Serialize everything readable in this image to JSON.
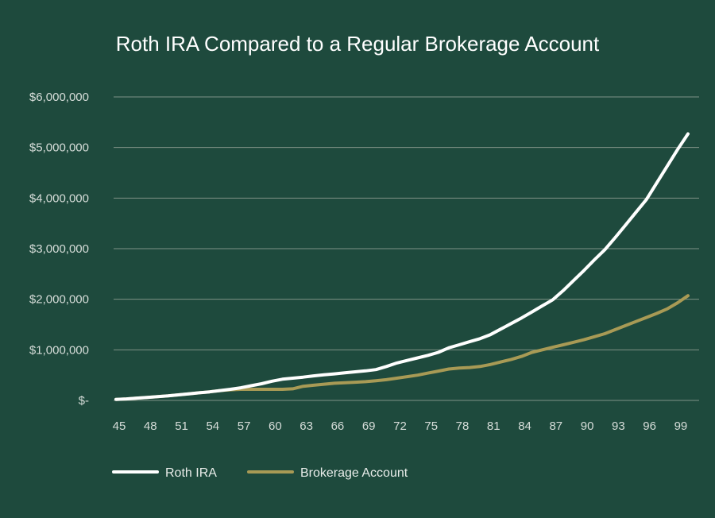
{
  "chart_data": {
    "type": "line",
    "title": "Roth IRA Compared to a Regular Brokerage Account",
    "xlabel": "",
    "ylabel": "",
    "x": [
      45,
      46,
      47,
      48,
      49,
      50,
      51,
      52,
      53,
      54,
      55,
      56,
      57,
      58,
      59,
      60,
      61,
      62,
      63,
      64,
      65,
      66,
      67,
      68,
      69,
      70,
      71,
      72,
      73,
      74,
      75,
      76,
      77,
      78,
      79,
      80,
      81,
      82,
      83,
      84,
      85,
      86,
      87,
      88,
      89,
      90,
      91,
      92,
      93,
      94,
      95,
      96,
      97,
      98,
      99,
      100
    ],
    "x_tick_labels": [
      "45",
      "48",
      "51",
      "54",
      "57",
      "60",
      "63",
      "66",
      "69",
      "72",
      "75",
      "78",
      "81",
      "84",
      "87",
      "90",
      "93",
      "96",
      "99"
    ],
    "y_tick_labels": [
      "$-",
      "$1,000,000",
      "$2,000,000",
      "$3,000,000",
      "$4,000,000",
      "$5,000,000",
      "$6,000,000"
    ],
    "ylim": [
      0,
      6000000
    ],
    "grid": "horizontal",
    "legend_position": "bottom-left",
    "series": [
      {
        "name": "Roth IRA",
        "color": "#ffffff",
        "values": [
          20000,
          30000,
          45000,
          60000,
          75000,
          90000,
          110000,
          130000,
          150000,
          170000,
          195000,
          220000,
          250000,
          290000,
          330000,
          380000,
          420000,
          440000,
          460000,
          485000,
          505000,
          525000,
          545000,
          565000,
          585000,
          610000,
          670000,
          740000,
          790000,
          840000,
          890000,
          950000,
          1040000,
          1100000,
          1160000,
          1220000,
          1300000,
          1410000,
          1520000,
          1630000,
          1750000,
          1870000,
          1990000,
          2170000,
          2370000,
          2570000,
          2780000,
          2980000,
          3220000,
          3470000,
          3720000,
          3970000,
          4300000,
          4630000,
          4960000,
          5270000
        ]
      },
      {
        "name": "Brokerage Account",
        "color": "#a89a55",
        "values": [
          20000,
          30000,
          45000,
          60000,
          75000,
          90000,
          110000,
          130000,
          150000,
          170000,
          195000,
          210000,
          220000,
          220000,
          220000,
          220000,
          220000,
          230000,
          280000,
          300000,
          320000,
          340000,
          350000,
          360000,
          370000,
          390000,
          410000,
          440000,
          470000,
          500000,
          540000,
          580000,
          620000,
          640000,
          650000,
          670000,
          710000,
          760000,
          810000,
          870000,
          950000,
          1000000,
          1050000,
          1100000,
          1150000,
          1200000,
          1260000,
          1320000,
          1400000,
          1480000,
          1560000,
          1640000,
          1720000,
          1810000,
          1930000,
          2070000
        ]
      }
    ]
  }
}
